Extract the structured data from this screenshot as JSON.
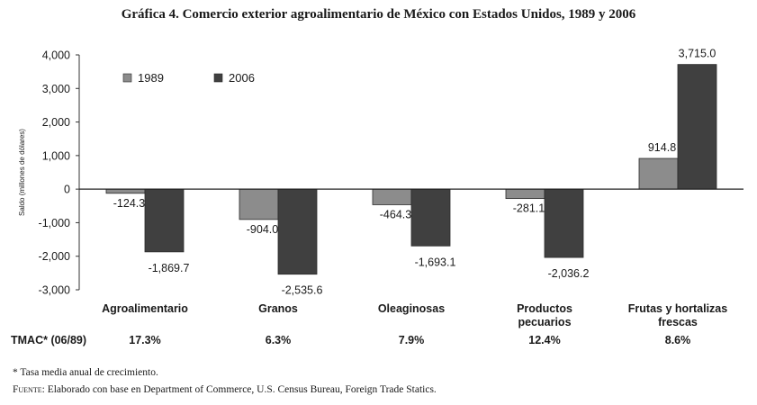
{
  "chart_data": {
    "type": "bar",
    "title": "Gráfica 4. Comercio exterior agroalimentario de México con Estados Unidos, 1989 y 2006",
    "ylabel": "Saldo (millones de dólares)",
    "xlabel": "",
    "ylim": [
      -3000,
      4000
    ],
    "yticks": [
      4000,
      3000,
      2000,
      1000,
      0,
      -1000,
      -2000,
      -3000
    ],
    "ytick_labels": [
      "4,000",
      "3,000",
      "2,000",
      "1,000",
      "0",
      "-1,000",
      "-2,000",
      "-3,000"
    ],
    "categories": [
      [
        "Agroalimentario"
      ],
      [
        "Granos"
      ],
      [
        "Oleaginosas"
      ],
      [
        "Productos",
        "pecuarios"
      ],
      [
        "Frutas y hortalizas",
        "frescas"
      ]
    ],
    "series": [
      {
        "name": "1989",
        "color": "#8c8c8c",
        "values": [
          -124.3,
          -904.0,
          -464.3,
          -281.1,
          914.8
        ],
        "labels": [
          "-124.3",
          "-904.0",
          "-464.3",
          "-281.1",
          "914.8"
        ]
      },
      {
        "name": "2006",
        "color": "#404040",
        "values": [
          -1869.7,
          -2535.6,
          -1693.1,
          -2036.2,
          3715.0
        ],
        "labels": [
          "-1,869.7",
          "-2,535.6",
          "-1,693.1",
          "-2,036.2",
          "3,715.0"
        ]
      }
    ],
    "legend_position": "top-left",
    "tmac": {
      "label": "TMAC* (06/89)",
      "values": [
        "17.3%",
        "6.3%",
        "7.9%",
        "12.4%",
        "8.6%"
      ]
    }
  },
  "notes": {
    "footnote": "* Tasa media anual de crecimiento.",
    "source_label": "Fuente:",
    "source_text": " Elaborado con base en Department of Commerce, U.S. Census Bureau, Foreign Trade Statics."
  }
}
